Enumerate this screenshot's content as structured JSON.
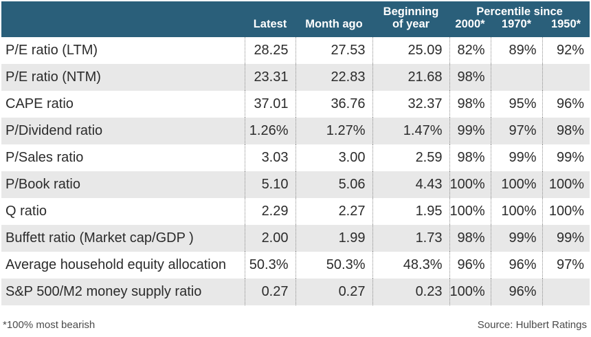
{
  "chart_data": {
    "type": "table",
    "header": {
      "latest": "Latest",
      "month_ago": "Month ago",
      "beginning_line1": "Beginning",
      "beginning_line2": "of year",
      "percentile_since": "Percentile since",
      "p2000": "2000*",
      "p1970": "1970*",
      "p1950": "1950*"
    },
    "rows": [
      {
        "label": "P/E ratio (LTM)",
        "latest": "28.25",
        "month_ago": "27.53",
        "beginning": "25.09",
        "p2000": "82%",
        "p1970": "89%",
        "p1950": "92%"
      },
      {
        "label": "P/E ratio (NTM)",
        "latest": "23.31",
        "month_ago": "22.83",
        "beginning": "21.68",
        "p2000": "98%",
        "p1970": "",
        "p1950": ""
      },
      {
        "label": "CAPE ratio",
        "latest": "37.01",
        "month_ago": "36.76",
        "beginning": "32.37",
        "p2000": "98%",
        "p1970": "95%",
        "p1950": "96%"
      },
      {
        "label": "P/Dividend ratio",
        "latest": "1.26%",
        "month_ago": "1.27%",
        "beginning": "1.47%",
        "p2000": "99%",
        "p1970": "97%",
        "p1950": "98%"
      },
      {
        "label": "P/Sales ratio",
        "latest": "3.03",
        "month_ago": "3.00",
        "beginning": "2.59",
        "p2000": "98%",
        "p1970": "99%",
        "p1950": "99%"
      },
      {
        "label": "P/Book ratio",
        "latest": "5.10",
        "month_ago": "5.06",
        "beginning": "4.43",
        "p2000": "100%",
        "p1970": "100%",
        "p1950": "100%"
      },
      {
        "label": "Q ratio",
        "latest": "2.29",
        "month_ago": "2.27",
        "beginning": "1.95",
        "p2000": "100%",
        "p1970": "100%",
        "p1950": "100%"
      },
      {
        "label": "Buffett ratio (Market cap/GDP )",
        "latest": "2.00",
        "month_ago": "1.99",
        "beginning": "1.73",
        "p2000": "98%",
        "p1970": "99%",
        "p1950": "99%"
      },
      {
        "label": "Average household equity allocation",
        "latest": "50.3%",
        "month_ago": "50.3%",
        "beginning": "48.3%",
        "p2000": "96%",
        "p1970": "96%",
        "p1950": "97%"
      },
      {
        "label": "S&P 500/M2 money supply ratio",
        "latest": "0.27",
        "month_ago": "0.27",
        "beginning": "0.23",
        "p2000": "100%",
        "p1970": "96%",
        "p1950": ""
      }
    ],
    "footnote": "*100% most bearish",
    "source": "Source: Hulbert Ratings",
    "colors": {
      "header_bg": "#2a5f7a",
      "header_text": "#ffffff",
      "row_shade": "#e8e8e8"
    }
  }
}
